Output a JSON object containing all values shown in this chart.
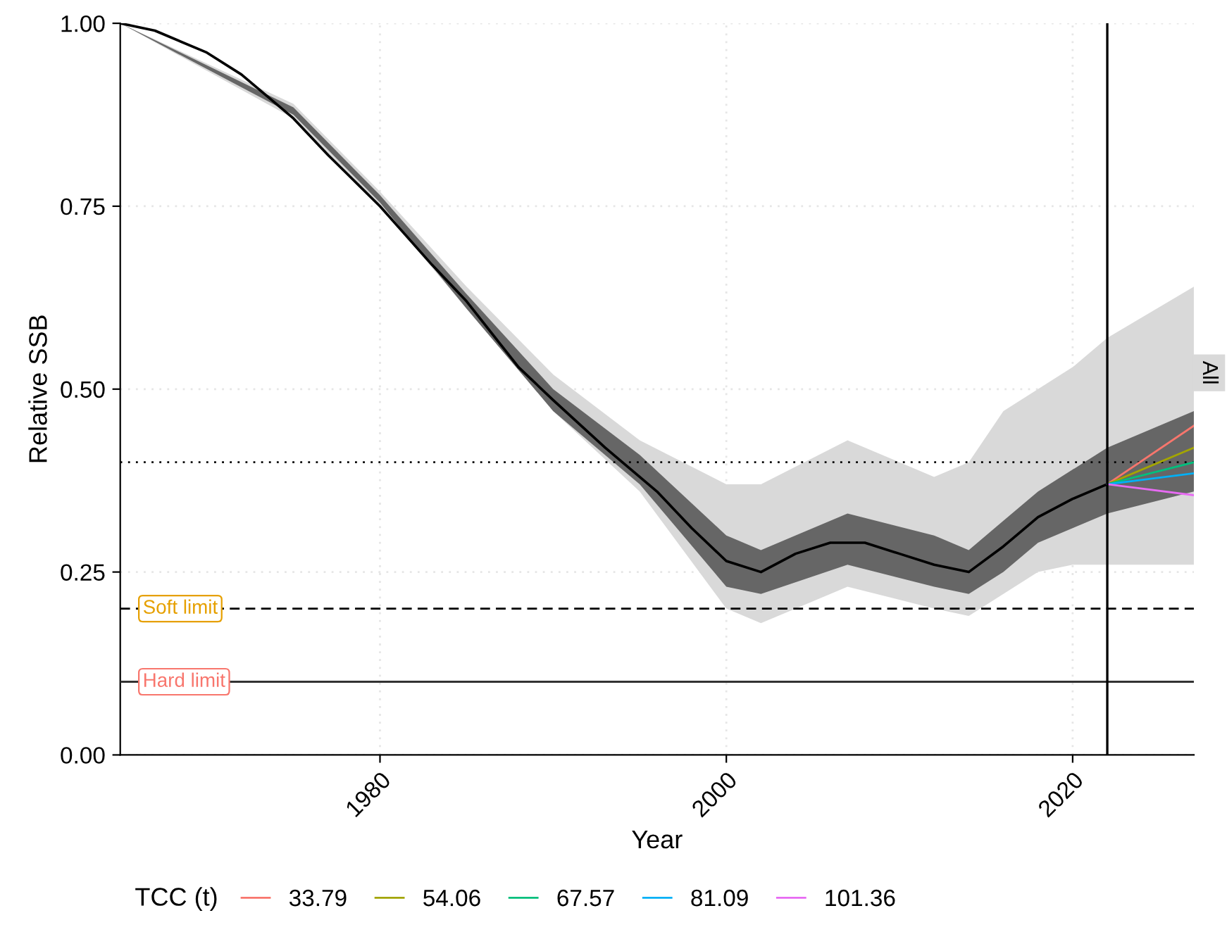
{
  "chart_data": {
    "type": "line",
    "xlabel": "Year",
    "ylabel": "Relative SSB",
    "legend_title": "TCC (t)",
    "xlim": [
      1965,
      2027
    ],
    "xticks": [
      1980,
      2000,
      2020
    ],
    "ylim": [
      0,
      1
    ],
    "yticks": [
      {
        "value": 0,
        "label": "0.00"
      },
      {
        "value": 0.25,
        "label": "0.25"
      },
      {
        "value": 0.5,
        "label": "0.50"
      },
      {
        "value": 0.75,
        "label": "0.75"
      },
      {
        "value": 1,
        "label": "1.00"
      }
    ],
    "grid": true,
    "legend": "bottom",
    "line_style": "solid",
    "marker": "none",
    "series": [
      {
        "color": "#d9d9d9",
        "x": [
          1965,
          1975,
          1980,
          1985,
          1990,
          1995,
          2000,
          2002,
          2007,
          2012,
          2014,
          2016,
          2018,
          2020,
          2022,
          2027
        ],
        "values": [
          null,
          null,
          null,
          null,
          null,
          null,
          null,
          null,
          null,
          null,
          null,
          null,
          null,
          null,
          null,
          null
        ],
        "lower": [
          1.0,
          0.87,
          0.75,
          0.61,
          0.47,
          0.36,
          0.2,
          0.18,
          0.23,
          0.2,
          0.19,
          0.22,
          0.25,
          0.26,
          0.26,
          0.26
        ],
        "upper": [
          1.0,
          0.89,
          0.77,
          0.64,
          0.52,
          0.43,
          0.37,
          0.37,
          0.43,
          0.38,
          0.4,
          0.47,
          0.5,
          0.53,
          0.57,
          0.64
        ]
      },
      {
        "color": "#666666",
        "x": [
          1965,
          1975,
          1980,
          1985,
          1990,
          1995,
          2000,
          2002,
          2007,
          2012,
          2014,
          2016,
          2018,
          2020,
          2022,
          2027
        ],
        "values": [
          null,
          null,
          null,
          null,
          null,
          null,
          null,
          null,
          null,
          null,
          null,
          null,
          null,
          null,
          null,
          null
        ],
        "lower": [
          1.0,
          0.875,
          0.755,
          0.61,
          0.47,
          0.37,
          0.23,
          0.22,
          0.26,
          0.23,
          0.22,
          0.25,
          0.29,
          0.31,
          0.33,
          0.36
        ],
        "upper": [
          1.0,
          0.885,
          0.765,
          0.63,
          0.5,
          0.41,
          0.3,
          0.28,
          0.33,
          0.3,
          0.28,
          0.32,
          0.36,
          0.39,
          0.42,
          0.47
        ]
      },
      {
        "color": "#000000",
        "x": [
          1965,
          1967,
          1970,
          1972,
          1975,
          1977,
          1980,
          1983,
          1985,
          1988,
          1990,
          1993,
          1996,
          1998,
          2000,
          2002,
          2004,
          2006,
          2008,
          2010,
          2012,
          2014,
          2016,
          2018,
          2020,
          2022
        ],
        "values": [
          1.0,
          0.99,
          0.96,
          0.93,
          0.87,
          0.82,
          0.75,
          0.67,
          0.62,
          0.53,
          0.485,
          0.42,
          0.36,
          0.31,
          0.265,
          0.25,
          0.275,
          0.29,
          0.29,
          0.275,
          0.26,
          0.25,
          0.285,
          0.325,
          0.35,
          0.37
        ]
      },
      {
        "name": "33.79",
        "color": "#f8766d",
        "x": [
          2022,
          2027
        ],
        "values": [
          0.37,
          0.45
        ]
      },
      {
        "name": "54.06",
        "color": "#a3a500",
        "x": [
          2022,
          2027
        ],
        "values": [
          0.37,
          0.42
        ]
      },
      {
        "name": "67.57",
        "color": "#00bf7d",
        "x": [
          2022,
          2027
        ],
        "values": [
          0.37,
          0.4
        ]
      },
      {
        "name": "81.09",
        "color": "#00b0f6",
        "x": [
          2022,
          2027
        ],
        "values": [
          0.37,
          0.385
        ]
      },
      {
        "name": "101.36",
        "color": "#e76bf3",
        "x": [
          2022,
          2027
        ],
        "values": [
          0.37,
          0.355
        ]
      }
    ],
    "ref_lines": [
      {
        "axis": "y",
        "value": 0.4,
        "line_style": "dotted",
        "color": "#000000"
      },
      {
        "axis": "y",
        "value": 0.2,
        "label": "Soft limit",
        "line_style": "dashed",
        "color": "#000000"
      },
      {
        "axis": "y",
        "value": 0.1,
        "label": "Hard limit",
        "line_style": "solid",
        "color": "#333333"
      },
      {
        "axis": "x",
        "value": 2022,
        "line_style": "solid",
        "color": "#000000"
      }
    ],
    "annotations": [
      "All"
    ]
  }
}
